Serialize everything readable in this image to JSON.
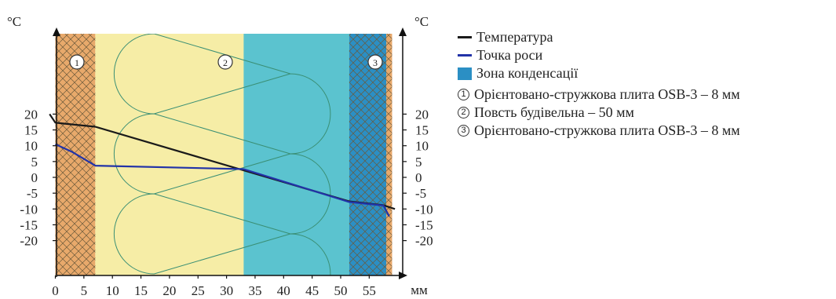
{
  "chart_data": {
    "type": "line",
    "y_unit_left": "°C",
    "y_unit_right": "°C",
    "x_unit": "мм",
    "xlim": [
      -2,
      60
    ],
    "ylim": [
      -21,
      23
    ],
    "x_ticks": [
      "0",
      "5",
      "10",
      "15",
      "20",
      "25",
      "30",
      "35",
      "40",
      "45",
      "50",
      "55"
    ],
    "x_tick_values": [
      0,
      5,
      10,
      15,
      20,
      25,
      30,
      35,
      40,
      45,
      50,
      55
    ],
    "y_ticks": [
      "20",
      "15",
      "10",
      "5",
      "0",
      "-5",
      "-10",
      "-15",
      "-20"
    ],
    "y_tick_values": [
      20,
      15,
      10,
      5,
      0,
      -5,
      -10,
      -15,
      -20
    ],
    "layers": [
      {
        "id": "1",
        "from": 0,
        "to": 7,
        "color": "#E8A96B",
        "hatch": true
      },
      {
        "id": "2",
        "from": 7,
        "to": 58,
        "color": "#F6EDA6",
        "hatch": false
      },
      {
        "id": "3",
        "from": 51.5,
        "to": 58,
        "color": "#2B8FC4",
        "hatch": true
      },
      {
        "id": "",
        "from": 58,
        "to": 59,
        "color": "#E8A96B",
        "hatch": true
      }
    ],
    "condensation_zone": {
      "from": 33,
      "to": 51.5,
      "color": "#5BC3CF"
    },
    "series": [
      {
        "name": "Температура",
        "color": "#1a1a1a",
        "x": [
          -1,
          0,
          1,
          7,
          33,
          51.5,
          57.5,
          59.5
        ],
        "y": [
          20,
          17.3,
          17.1,
          16,
          2.2,
          -7.6,
          -8.8,
          -10
        ]
      },
      {
        "name": "Точка роси",
        "color": "#2233A8",
        "x": [
          0,
          3,
          7,
          33,
          51.5,
          57.5,
          58.5
        ],
        "y": [
          10.5,
          8,
          3.7,
          2.6,
          -7.8,
          -8.9,
          -12.3
        ]
      }
    ]
  },
  "legend": {
    "temperature": "Температура",
    "dew_point": "Точка роси",
    "condensation": "Зона конденсації",
    "layer1_num": "1",
    "layer1": "Орієнтовано-стружкова плита OSB-3 – 8 мм",
    "layer2_num": "2",
    "layer2": "Повсть будівельна – 50 мм",
    "layer3_num": "3",
    "layer3": "Орієнтовано-стружкова плита OSB-3 – 8 мм"
  },
  "colors": {
    "temperature": "#1a1a1a",
    "dew_point": "#2233A8",
    "condensation": "#2B8FC4"
  }
}
